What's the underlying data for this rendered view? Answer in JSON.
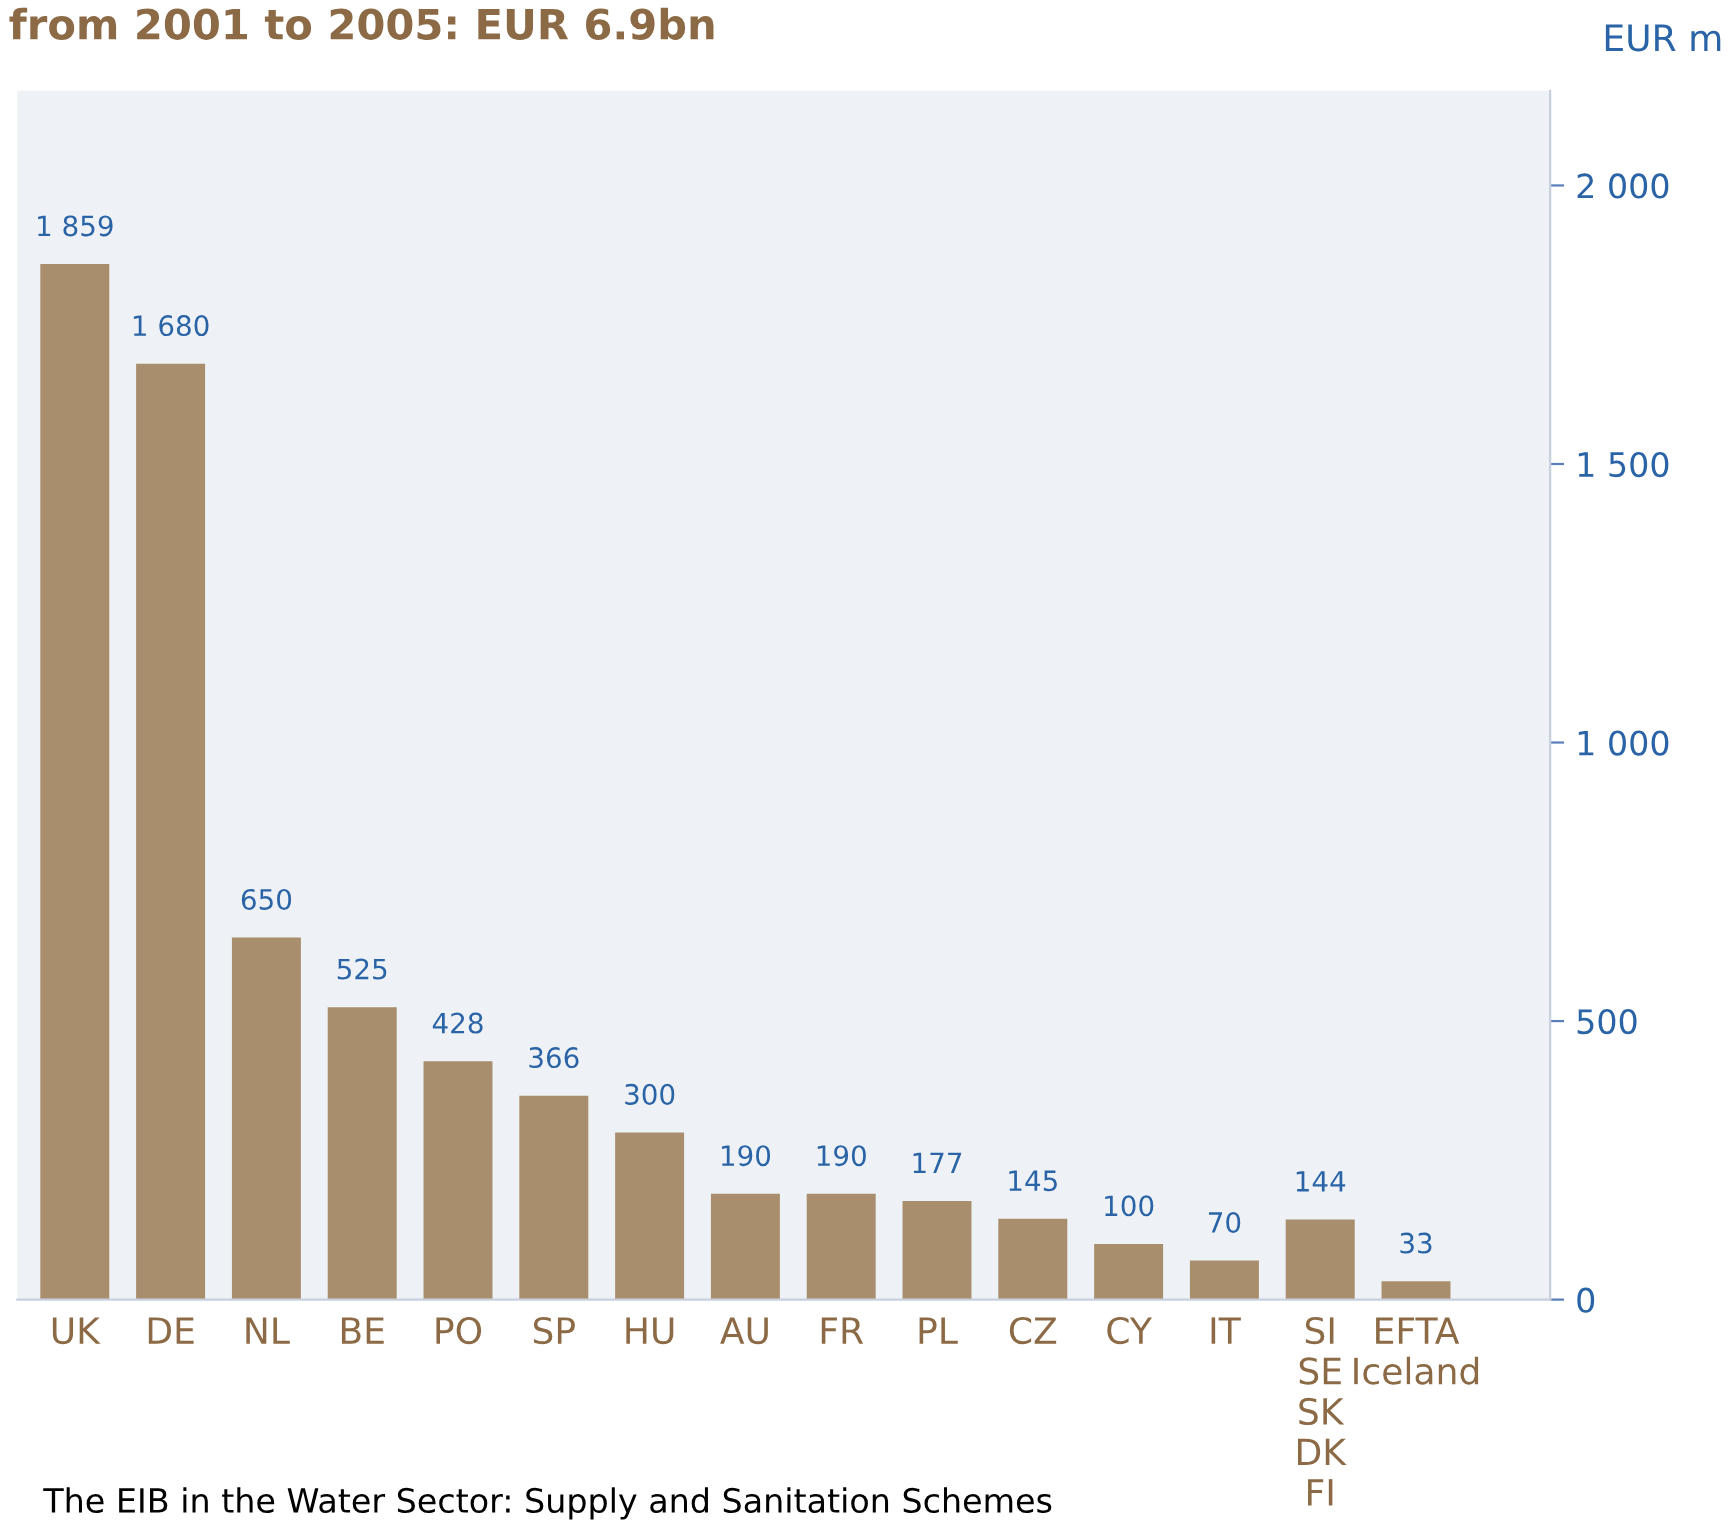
{
  "chart_data": {
    "type": "bar",
    "title": "from 2001 to 2005: EUR 6.9bn",
    "ylabel": "EUR m",
    "categories": [
      "UK",
      "DE",
      "NL",
      "BE",
      "PO",
      "SP",
      "HU",
      "AU",
      "FR",
      "PL",
      "CZ",
      "CY",
      "IT",
      "SI\nSE\nSK\nDK\nFI",
      "EFTA\nIceland"
    ],
    "values": [
      1859,
      1680,
      650,
      525,
      428,
      366,
      300,
      190,
      190,
      177,
      145,
      100,
      70,
      144,
      33
    ],
    "color": "#a88e6c",
    "ylim": [
      0,
      2170
    ],
    "yticks": [
      {
        "value": 0,
        "label": "0"
      },
      {
        "value": 500,
        "label": "500"
      },
      {
        "value": 1000,
        "label": "1 000"
      },
      {
        "value": 1500,
        "label": "1 500"
      },
      {
        "value": 2000,
        "label": "2 000"
      }
    ],
    "value_labels": [
      "1 859",
      "1 680",
      "650",
      "525",
      "428",
      "366",
      "300",
      "190",
      "190",
      "177",
      "145",
      "100",
      "70",
      "144",
      "33"
    ],
    "grid": false,
    "legend": false,
    "annotations": [
      "The EIB in the Water Sector: Supply and Sanitation Schemes"
    ]
  }
}
